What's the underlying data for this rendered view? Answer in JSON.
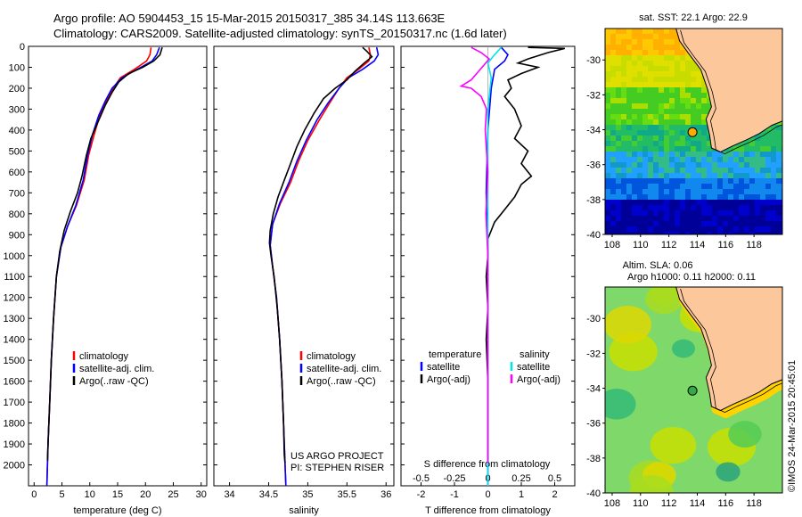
{
  "header": {
    "line1": "Argo profile: AO 5904453_15 15-Mar-2015 20150317_385 34.14S 113.663E",
    "line2": "Climatology: CARS2009. Satellite-adjusted climatology: synTS_20150317.nc (1.6d later)"
  },
  "credit": "©IMOS 24-Mar-2015 20:45:01",
  "colors": {
    "climatology": "#ff0000",
    "satellite": "#0000ff",
    "argo": "#000000",
    "satellite_salinity": "#00e5e5",
    "argo_salinity": "#ff00ff",
    "land": "#fcc89b"
  },
  "chart_data": [
    {
      "id": "temperature",
      "type": "line",
      "xlabel": "temperature (deg C)",
      "ylabel": "",
      "xlim": [
        -1,
        31
      ],
      "ylim": [
        0,
        2100
      ],
      "y_inverted": true,
      "xticks": [
        0,
        5,
        10,
        15,
        20,
        25,
        30
      ],
      "yticks": [
        0,
        100,
        200,
        300,
        400,
        500,
        600,
        700,
        800,
        900,
        1000,
        1100,
        1200,
        1300,
        1400,
        1500,
        1600,
        1700,
        1800,
        1900,
        2000
      ],
      "legend": {
        "position": "lower-middle",
        "entries": [
          "climatology",
          "satellite-adj. clim.",
          "Argo(..raw -QC)"
        ]
      },
      "series": [
        {
          "name": "climatology",
          "color": "#ff0000",
          "points": [
            [
              21.0,
              5
            ],
            [
              20.8,
              40
            ],
            [
              20.2,
              70
            ],
            [
              18.0,
              110
            ],
            [
              15.5,
              150
            ],
            [
              14.2,
              200
            ],
            [
              13.0,
              260
            ],
            [
              11.8,
              330
            ],
            [
              10.8,
              420
            ],
            [
              9.8,
              520
            ],
            [
              9.0,
              640
            ],
            [
              7.6,
              760
            ],
            [
              6.0,
              860
            ],
            [
              4.8,
              960
            ],
            [
              4.0,
              1100
            ],
            [
              3.5,
              1300
            ],
            [
              3.1,
              1500
            ],
            [
              2.8,
              1700
            ],
            [
              2.5,
              1900
            ],
            [
              2.3,
              2100
            ]
          ]
        },
        {
          "name": "satellite-adj. clim.",
          "color": "#0000ff",
          "points": [
            [
              22.5,
              5
            ],
            [
              22.0,
              40
            ],
            [
              21.2,
              70
            ],
            [
              18.5,
              110
            ],
            [
              15.8,
              150
            ],
            [
              14.0,
              200
            ],
            [
              12.8,
              260
            ],
            [
              11.6,
              330
            ],
            [
              10.5,
              420
            ],
            [
              9.6,
              520
            ],
            [
              8.8,
              640
            ],
            [
              7.5,
              760
            ],
            [
              6.0,
              860
            ],
            [
              4.8,
              960
            ],
            [
              4.0,
              1100
            ],
            [
              3.5,
              1300
            ],
            [
              3.1,
              1500
            ],
            [
              2.8,
              1700
            ],
            [
              2.5,
              1900
            ],
            [
              2.3,
              2100
            ]
          ]
        },
        {
          "name": "Argo(..raw -QC)",
          "color": "#000000",
          "points": [
            [
              23.0,
              5
            ],
            [
              22.6,
              40
            ],
            [
              21.5,
              70
            ],
            [
              19.5,
              100
            ],
            [
              17.0,
              130
            ],
            [
              15.2,
              170
            ],
            [
              14.0,
              220
            ],
            [
              12.8,
              280
            ],
            [
              11.5,
              360
            ],
            [
              10.2,
              440
            ],
            [
              9.4,
              520
            ],
            [
              8.6,
              620
            ],
            [
              7.8,
              700
            ],
            [
              6.5,
              790
            ],
            [
              5.4,
              880
            ],
            [
              4.6,
              980
            ],
            [
              4.0,
              1100
            ],
            [
              3.5,
              1300
            ],
            [
              3.1,
              1500
            ],
            [
              2.8,
              1700
            ],
            [
              2.5,
              1900
            ],
            [
              2.4,
              1980
            ]
          ]
        }
      ]
    },
    {
      "id": "salinity",
      "type": "line",
      "xlabel": "salinity",
      "ylabel": "",
      "xlim": [
        33.8,
        36.1
      ],
      "ylim": [
        0,
        2100
      ],
      "y_inverted": true,
      "xticks": [
        34,
        34.5,
        35,
        35.5,
        36
      ],
      "xtick_labels": [
        "34",
        "34.5",
        "35",
        "35.5",
        "36"
      ],
      "legend": {
        "position": "lower-middle",
        "entries": [
          "climatology",
          "satellite-adj. clim.",
          "Argo(..raw -QC)"
        ]
      },
      "annotation": [
        "US ARGO PROJECT",
        "PI: STEPHEN RISER"
      ],
      "series": [
        {
          "name": "climatology",
          "color": "#ff0000",
          "points": [
            [
              35.78,
              5
            ],
            [
              35.8,
              40
            ],
            [
              35.78,
              70
            ],
            [
              35.65,
              110
            ],
            [
              35.5,
              150
            ],
            [
              35.4,
              200
            ],
            [
              35.28,
              270
            ],
            [
              35.15,
              350
            ],
            [
              35.0,
              450
            ],
            [
              34.88,
              550
            ],
            [
              34.78,
              650
            ],
            [
              34.65,
              750
            ],
            [
              34.55,
              850
            ],
            [
              34.52,
              950
            ],
            [
              34.55,
              1050
            ],
            [
              34.6,
              1200
            ],
            [
              34.64,
              1400
            ],
            [
              34.67,
              1600
            ],
            [
              34.69,
              1800
            ],
            [
              34.71,
              2000
            ],
            [
              34.72,
              2100
            ]
          ]
        },
        {
          "name": "satellite-adj. clim.",
          "color": "#0000ff",
          "points": [
            [
              35.88,
              5
            ],
            [
              35.9,
              40
            ],
            [
              35.85,
              70
            ],
            [
              35.7,
              110
            ],
            [
              35.52,
              150
            ],
            [
              35.4,
              200
            ],
            [
              35.26,
              270
            ],
            [
              35.12,
              350
            ],
            [
              34.98,
              450
            ],
            [
              34.86,
              550
            ],
            [
              34.76,
              650
            ],
            [
              34.64,
              750
            ],
            [
              34.55,
              850
            ],
            [
              34.52,
              950
            ],
            [
              34.55,
              1050
            ],
            [
              34.6,
              1200
            ],
            [
              34.64,
              1400
            ],
            [
              34.67,
              1600
            ],
            [
              34.69,
              1800
            ],
            [
              34.71,
              2000
            ],
            [
              34.72,
              2100
            ]
          ]
        },
        {
          "name": "Argo(..raw -QC)",
          "color": "#000000",
          "points": [
            [
              35.7,
              5
            ],
            [
              35.76,
              25
            ],
            [
              35.82,
              50
            ],
            [
              35.72,
              80
            ],
            [
              35.6,
              120
            ],
            [
              35.5,
              160
            ],
            [
              35.35,
              200
            ],
            [
              35.2,
              250
            ],
            [
              35.08,
              320
            ],
            [
              34.96,
              400
            ],
            [
              34.86,
              480
            ],
            [
              34.78,
              560
            ],
            [
              34.7,
              640
            ],
            [
              34.62,
              720
            ],
            [
              34.56,
              800
            ],
            [
              34.52,
              880
            ],
            [
              34.51,
              940
            ],
            [
              34.53,
              1000
            ],
            [
              34.57,
              1100
            ],
            [
              34.61,
              1250
            ],
            [
              34.64,
              1400
            ],
            [
              34.67,
              1600
            ],
            [
              34.69,
              1800
            ],
            [
              34.7,
              1950
            ],
            [
              34.71,
              1990
            ]
          ]
        }
      ]
    },
    {
      "id": "difference",
      "type": "line",
      "xlabel": "T difference from climatology",
      "top_xlabel": "S difference from climatology",
      "ylabel": "",
      "xlim": [
        -2.6,
        2.6
      ],
      "ylim": [
        0,
        2100
      ],
      "y_inverted": true,
      "xticks": [
        -2,
        -1,
        0,
        1,
        2
      ],
      "s_xticks": [
        -0.5,
        -0.25,
        0,
        0.25,
        0.5
      ],
      "s_xtick_labels": [
        "-0.5",
        "-0.25",
        "0",
        "0.25",
        "0.5"
      ],
      "s_scale": 2.0,
      "legend": {
        "position": "lower-middle",
        "groups": [
          {
            "title": "temperature",
            "entries": [
              "satellite",
              "Argo(-adj)"
            ]
          },
          {
            "title": "salinity",
            "entries": [
              "satellite",
              "Argo(-adj)"
            ]
          }
        ]
      },
      "series": [
        {
          "name": "temperature satellite",
          "color": "#0000ff",
          "points": [
            [
              0.4,
              5
            ],
            [
              0.6,
              40
            ],
            [
              0.5,
              70
            ],
            [
              0.2,
              110
            ],
            [
              0.1,
              200
            ],
            [
              0.0,
              400
            ],
            [
              -0.05,
              700
            ],
            [
              0.0,
              1000
            ],
            [
              0.0,
              1500
            ],
            [
              0.0,
              2100
            ]
          ]
        },
        {
          "name": "temperature Argo(-adj)",
          "color": "#000000",
          "points": [
            [
              1.2,
              5
            ],
            [
              2.3,
              10
            ],
            [
              1.8,
              30
            ],
            [
              1.2,
              60
            ],
            [
              0.9,
              80
            ],
            [
              1.5,
              100
            ],
            [
              1.0,
              130
            ],
            [
              0.6,
              160
            ],
            [
              0.7,
              200
            ],
            [
              0.5,
              240
            ],
            [
              0.8,
              300
            ],
            [
              1.0,
              380
            ],
            [
              0.8,
              440
            ],
            [
              1.2,
              500
            ],
            [
              1.0,
              560
            ],
            [
              1.3,
              620
            ],
            [
              1.0,
              660
            ],
            [
              0.8,
              720
            ],
            [
              0.5,
              780
            ],
            [
              0.2,
              840
            ],
            [
              0.0,
              920
            ],
            [
              0.0,
              1000
            ],
            [
              -0.05,
              1100
            ],
            [
              0.0,
              1250
            ],
            [
              -0.05,
              1400
            ],
            [
              0.0,
              1600
            ],
            [
              0.0,
              1800
            ],
            [
              0.0,
              1990
            ]
          ]
        },
        {
          "name": "salinity satellite",
          "color": "#00e5e5",
          "points": [
            [
              0.2,
              5
            ],
            [
              0.1,
              40
            ],
            [
              0.0,
              80
            ],
            [
              0.05,
              150
            ],
            [
              0.0,
              300
            ],
            [
              0.0,
              600
            ],
            [
              0.0,
              1000
            ],
            [
              0.0,
              1500
            ],
            [
              0.0,
              2100
            ]
          ]
        },
        {
          "name": "salinity Argo(-adj)",
          "color": "#ff00ff",
          "points": [
            [
              -0.25,
              5
            ],
            [
              -0.1,
              30
            ],
            [
              0.02,
              60
            ],
            [
              -0.25,
              160
            ],
            [
              -0.4,
              190
            ],
            [
              -0.25,
              200
            ],
            [
              -0.1,
              240
            ],
            [
              -0.02,
              300
            ],
            [
              -0.04,
              400
            ],
            [
              0.0,
              600
            ],
            [
              -0.03,
              800
            ],
            [
              0.0,
              1000
            ],
            [
              0.0,
              1200
            ],
            [
              0.0,
              1500
            ],
            [
              0.0,
              1800
            ],
            [
              0.0,
              1990
            ]
          ]
        }
      ]
    },
    {
      "id": "sst-map",
      "type": "heatmap",
      "title": "sat. SST: 22.1 Argo: 22.9",
      "xlim": [
        107.5,
        120
      ],
      "ylim": [
        -40,
        -28.2
      ],
      "xticks": [
        108,
        110,
        112,
        114,
        116,
        118
      ],
      "yticks": [
        -30,
        -32,
        -34,
        -36,
        -38,
        -40
      ],
      "marker": {
        "lon": 113.663,
        "lat": -34.14
      }
    },
    {
      "id": "sla-map",
      "type": "heatmap",
      "title": "Altim. SLA: 0.06",
      "subtitle": "Argo h1000: 0.11 h2000: 0.11",
      "xlim": [
        107.5,
        120
      ],
      "ylim": [
        -40,
        -28.2
      ],
      "xticks": [
        108,
        110,
        112,
        114,
        116,
        118
      ],
      "yticks": [
        -30,
        -32,
        -34,
        -36,
        -38,
        -40
      ],
      "marker": {
        "lon": 113.663,
        "lat": -34.14
      }
    }
  ]
}
